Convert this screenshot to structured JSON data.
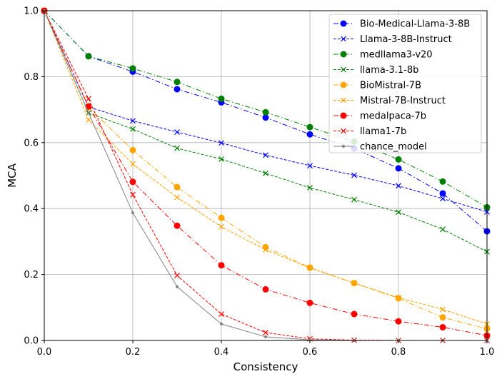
{
  "chart_data": {
    "type": "line",
    "title": "",
    "xlabel": "Consistency",
    "ylabel": "MCA",
    "xlim": [
      0.0,
      1.0
    ],
    "ylim": [
      0.0,
      1.0
    ],
    "xticks": [
      "0.0",
      "0.2",
      "0.4",
      "0.6",
      "0.8",
      "1.0"
    ],
    "yticks": [
      "0.0",
      "0.2",
      "0.4",
      "0.6",
      "0.8",
      "1.0"
    ],
    "grid": true,
    "legend_position": "top-right",
    "x": [
      0.0,
      0.1,
      0.2,
      0.3,
      0.4,
      0.5,
      0.6,
      0.7,
      0.8,
      0.9,
      1.0
    ],
    "series": [
      {
        "name": "Bio-Medical-Llama-3-8B",
        "color": "#0000ff",
        "marker": "circle",
        "dash": "dashdot",
        "values": [
          1.0,
          0.862,
          0.815,
          0.762,
          0.722,
          0.676,
          0.625,
          0.582,
          0.522,
          0.446,
          0.331
        ]
      },
      {
        "name": "Llama-3-8B-Instruct",
        "color": "#0000ff",
        "marker": "x",
        "dash": "dashed",
        "values": [
          1.0,
          0.708,
          0.666,
          0.632,
          0.599,
          0.562,
          0.53,
          0.501,
          0.469,
          0.43,
          0.39
        ]
      },
      {
        "name": "medllama3-v20",
        "color": "#008000",
        "marker": "circle",
        "dash": "dashdot",
        "values": [
          1.0,
          0.862,
          0.825,
          0.784,
          0.733,
          0.692,
          0.647,
          0.603,
          0.549,
          0.482,
          0.404
        ]
      },
      {
        "name": "llama-3.1-8b",
        "color": "#008000",
        "marker": "x",
        "dash": "dashed",
        "values": [
          1.0,
          0.69,
          0.641,
          0.583,
          0.55,
          0.507,
          0.463,
          0.427,
          0.389,
          0.337,
          0.269
        ]
      },
      {
        "name": "BioMistral-7B",
        "color": "#ffa500",
        "marker": "circle",
        "dash": "dashdot",
        "values": [
          1.0,
          0.707,
          0.577,
          0.465,
          0.372,
          0.283,
          0.221,
          0.174,
          0.128,
          0.07,
          0.035
        ]
      },
      {
        "name": "Mistral-7B-Instruct",
        "color": "#ffa500",
        "marker": "x",
        "dash": "dashed",
        "values": [
          1.0,
          0.669,
          0.535,
          0.434,
          0.345,
          0.275,
          0.22,
          0.174,
          0.13,
          0.094,
          0.05
        ]
      },
      {
        "name": "medalpaca-7b",
        "color": "#ff0000",
        "marker": "circle",
        "dash": "dashdot",
        "values": [
          1.0,
          0.71,
          0.481,
          0.348,
          0.228,
          0.155,
          0.114,
          0.08,
          0.058,
          0.04,
          0.015
        ]
      },
      {
        "name": "llama1-7b",
        "color": "#ff0000",
        "marker": "x",
        "dash": "dashed",
        "values": [
          1.0,
          0.733,
          0.442,
          0.197,
          0.08,
          0.024,
          0.005,
          0.001,
          0.0,
          0.0,
          0.0
        ]
      },
      {
        "name": "chance_model",
        "color": "#808080",
        "marker": "dot",
        "dash": "solid",
        "values": [
          1.0,
          0.69,
          0.387,
          0.163,
          0.05,
          0.011,
          0.002,
          0.0,
          0.0,
          0.0,
          0.0
        ]
      }
    ]
  }
}
